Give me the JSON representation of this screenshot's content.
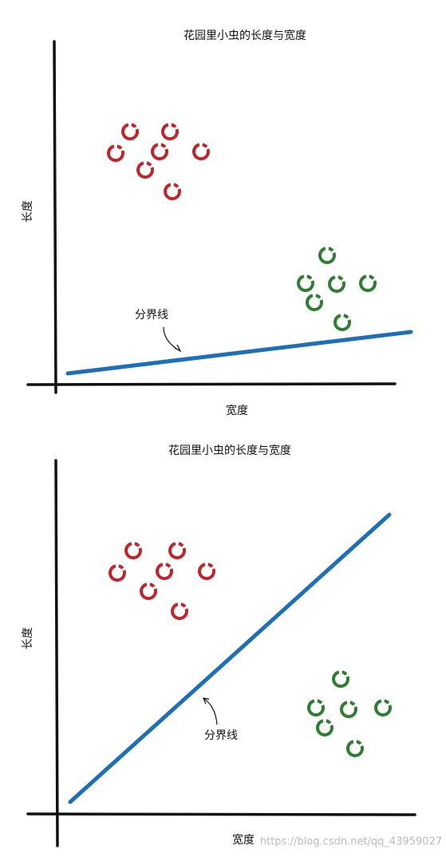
{
  "panels": [
    {
      "title": "花园里小虫的长度与宽度",
      "y_label": "长度",
      "x_label": "宽度",
      "line_label": "分界线"
    },
    {
      "title": "花园里小虫的长度与宽度",
      "y_label": "长度",
      "x_label": "宽度",
      "line_label": "分界线"
    }
  ],
  "watermark": "https://blog.csdn.net/qq_43959027"
}
